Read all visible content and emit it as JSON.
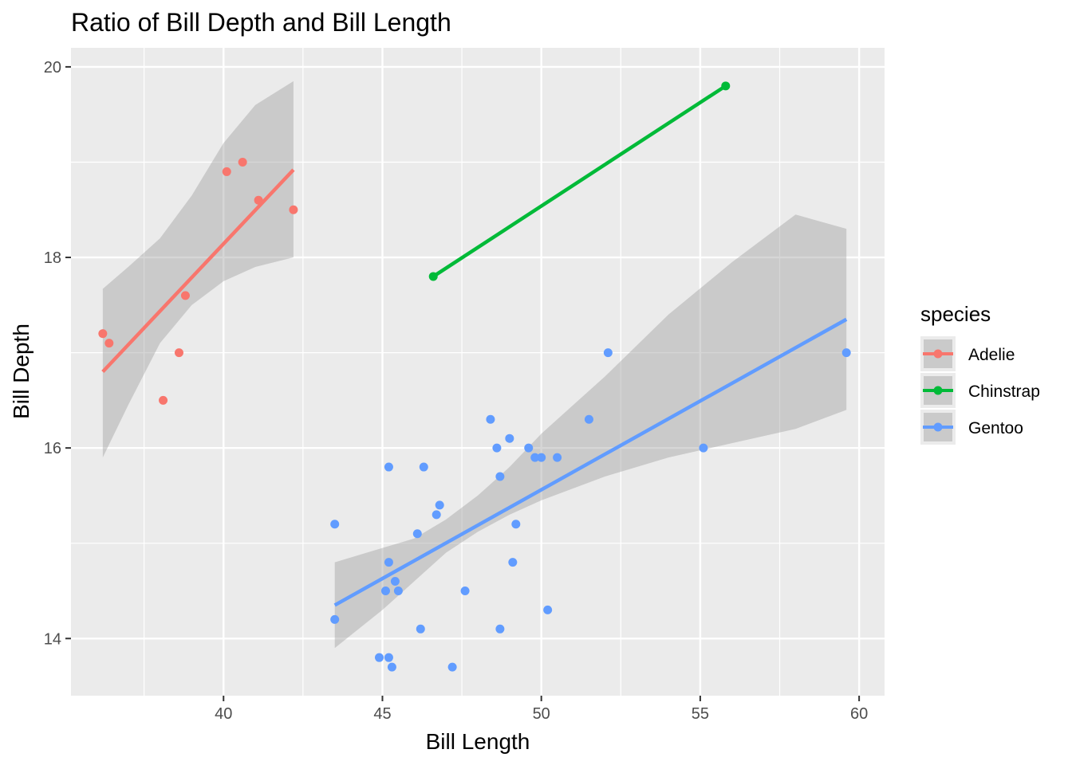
{
  "chart_data": {
    "type": "scatter",
    "title": "Ratio of Bill Depth and Bill Length",
    "xlabel": "Bill Length",
    "ylabel": "Bill Depth",
    "xlim": [
      35.2,
      60.8
    ],
    "ylim": [
      13.4,
      20.2
    ],
    "xticks": [
      40,
      45,
      50,
      55,
      60
    ],
    "yticks": [
      14,
      16,
      18,
      20
    ],
    "grid": true,
    "legend": {
      "title": "species",
      "position": "right"
    },
    "series": [
      {
        "name": "Adelie",
        "color": "#F8766D",
        "points": [
          [
            36.2,
            17.2
          ],
          [
            36.4,
            17.1
          ],
          [
            38.1,
            16.5
          ],
          [
            38.6,
            17.0
          ],
          [
            38.8,
            17.6
          ],
          [
            40.1,
            18.9
          ],
          [
            40.6,
            19.0
          ],
          [
            41.1,
            18.6
          ],
          [
            42.2,
            18.5
          ]
        ],
        "fit": {
          "x": [
            36.2,
            42.2
          ],
          "y": [
            16.8,
            18.92
          ]
        },
        "band": [
          [
            36.2,
            15.9,
            17.67
          ],
          [
            37.0,
            16.45,
            17.9
          ],
          [
            38.0,
            17.1,
            18.2
          ],
          [
            39.0,
            17.5,
            18.65
          ],
          [
            40.0,
            17.75,
            19.2
          ],
          [
            41.0,
            17.9,
            19.6
          ],
          [
            42.2,
            18.0,
            19.85
          ]
        ]
      },
      {
        "name": "Chinstrap",
        "color": "#00BA38",
        "points": [
          [
            46.6,
            17.8
          ],
          [
            55.8,
            19.8
          ]
        ],
        "fit": {
          "x": [
            46.6,
            55.8
          ],
          "y": [
            17.8,
            19.8
          ]
        },
        "band": []
      },
      {
        "name": "Gentoo",
        "color": "#619CFF",
        "points": [
          [
            43.5,
            15.2
          ],
          [
            43.5,
            14.2
          ],
          [
            44.9,
            13.8
          ],
          [
            45.1,
            14.5
          ],
          [
            45.2,
            15.8
          ],
          [
            45.2,
            14.8
          ],
          [
            45.2,
            13.8
          ],
          [
            45.3,
            13.7
          ],
          [
            45.4,
            14.6
          ],
          [
            45.5,
            14.5
          ],
          [
            46.1,
            15.1
          ],
          [
            46.2,
            14.1
          ],
          [
            46.3,
            15.8
          ],
          [
            46.7,
            15.3
          ],
          [
            46.8,
            15.4
          ],
          [
            47.2,
            13.7
          ],
          [
            47.6,
            14.5
          ],
          [
            48.4,
            16.3
          ],
          [
            48.6,
            16.0
          ],
          [
            48.7,
            15.7
          ],
          [
            48.7,
            14.1
          ],
          [
            49.0,
            16.1
          ],
          [
            49.1,
            14.8
          ],
          [
            49.2,
            15.2
          ],
          [
            49.6,
            16.0
          ],
          [
            49.8,
            15.9
          ],
          [
            50.0,
            15.9
          ],
          [
            50.2,
            14.3
          ],
          [
            50.5,
            15.9
          ],
          [
            51.5,
            16.3
          ],
          [
            52.1,
            17.0
          ],
          [
            55.1,
            16.0
          ],
          [
            59.6,
            17.0
          ]
        ],
        "fit": {
          "x": [
            43.5,
            59.6
          ],
          "y": [
            14.35,
            17.35
          ]
        },
        "band": [
          [
            43.5,
            13.9,
            14.8
          ],
          [
            45.0,
            14.3,
            14.95
          ],
          [
            46.0,
            14.6,
            15.05
          ],
          [
            47.0,
            14.9,
            15.25
          ],
          [
            48.0,
            15.12,
            15.5
          ],
          [
            49.0,
            15.3,
            15.8
          ],
          [
            50.0,
            15.45,
            16.15
          ],
          [
            52.0,
            15.7,
            16.75
          ],
          [
            54.0,
            15.9,
            17.4
          ],
          [
            56.0,
            16.05,
            17.95
          ],
          [
            58.0,
            16.2,
            18.45
          ],
          [
            59.6,
            16.4,
            18.3
          ]
        ]
      }
    ]
  }
}
